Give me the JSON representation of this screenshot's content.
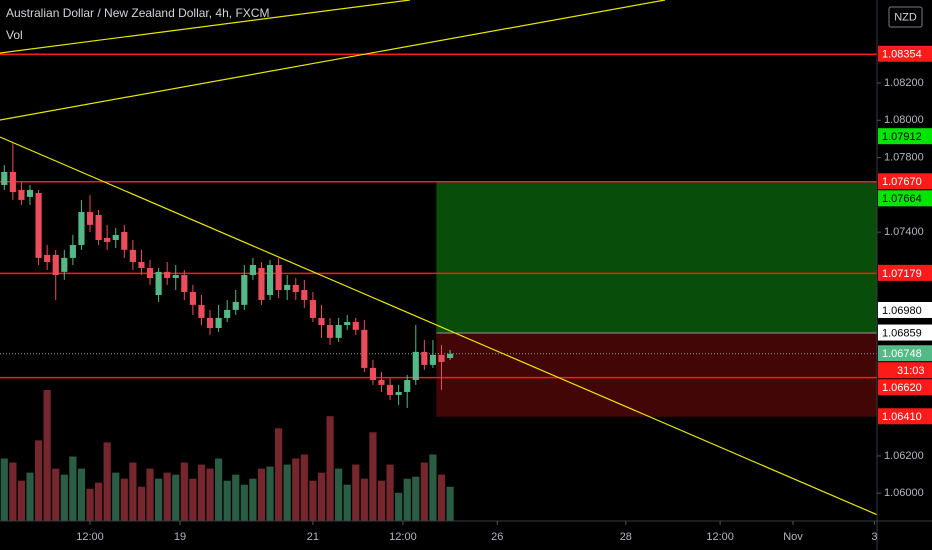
{
  "chart_data": {
    "type": "candlestick",
    "title": "Australian Dollar / New Zealand Dollar, 4h, FXCM",
    "indicator": "Vol",
    "currency": "NZD",
    "up_color": "#53b987",
    "down_color": "#eb4d5c",
    "ylim": [
      1.05851,
      1.08645
    ],
    "yticks": [
      {
        "value": 1.06,
        "label": "1.06000"
      },
      {
        "value": 1.062,
        "label": "1.06200"
      },
      {
        "value": 1.074,
        "label": "1.07400"
      },
      {
        "value": 1.078,
        "label": "1.07800"
      },
      {
        "value": 1.08,
        "label": "1.08000"
      },
      {
        "value": 1.082,
        "label": "1.08200"
      }
    ],
    "xlim": [
      -0.5,
      101.8
    ],
    "xticks": [
      {
        "value": 10,
        "label": "12:00"
      },
      {
        "value": 20.5,
        "label": "19"
      },
      {
        "value": 36,
        "label": "21"
      },
      {
        "value": 46.5,
        "label": "12:00"
      },
      {
        "value": 57.5,
        "label": "26"
      },
      {
        "value": 72.5,
        "label": "28"
      },
      {
        "value": 83.5,
        "label": "12:00"
      },
      {
        "value": 92,
        "label": "Nov"
      },
      {
        "value": 101.5,
        "label": "3"
      }
    ],
    "open": [
      1.07653,
      1.07723,
      1.07626,
      1.07589,
      1.0761,
      1.07278,
      1.07278,
      1.07187,
      1.07262,
      1.07331,
      1.07508,
      1.07492,
      1.07369,
      1.07358,
      1.07401,
      1.07305,
      1.0724,
      1.07208,
      1.07063,
      1.07187,
      1.07154,
      1.0717,
      1.07079,
      1.0701,
      1.0694,
      1.06886,
      1.0694,
      1.06983,
      1.0701,
      1.0717,
      1.07208,
      1.07063,
      1.07224,
      1.0709,
      1.07117,
      1.0709,
      1.07036,
      1.0694,
      1.06902,
      1.06833,
      1.06902,
      1.06918,
      1.06876,
      1.06672,
      1.06607,
      1.06581,
      1.06527,
      1.06543,
      1.06607,
      1.06758,
      1.06688,
      1.06742,
      1.06725
    ],
    "high": [
      1.0776,
      1.07884,
      1.07669,
      1.07653,
      1.07626,
      1.07331,
      1.07305,
      1.07305,
      1.07385,
      1.07573,
      1.07599,
      1.07519,
      1.07439,
      1.07422,
      1.07439,
      1.07358,
      1.07305,
      1.07251,
      1.07208,
      1.0724,
      1.07224,
      1.07197,
      1.07117,
      1.07063,
      1.06983,
      1.0701,
      1.07036,
      1.0709,
      1.07224,
      1.07262,
      1.0724,
      1.07251,
      1.07262,
      1.0717,
      1.07154,
      1.07144,
      1.07079,
      1.0701,
      1.0694,
      1.0694,
      1.06956,
      1.0694,
      1.06929,
      1.06715,
      1.0665,
      1.06618,
      1.06581,
      1.06634,
      1.06902,
      1.06822,
      1.06822,
      1.06795,
      1.06768
    ],
    "low": [
      1.07626,
      1.07573,
      1.07546,
      1.07546,
      1.07224,
      1.07197,
      1.07036,
      1.07144,
      1.07224,
      1.07305,
      1.07401,
      1.07331,
      1.07305,
      1.07315,
      1.07262,
      1.07197,
      1.0717,
      1.07117,
      1.07026,
      1.07117,
      1.0709,
      1.07036,
      1.06956,
      1.06902,
      1.06849,
      1.06865,
      1.06918,
      1.06956,
      1.06983,
      1.07144,
      1.0701,
      1.07036,
      1.07047,
      1.07036,
      1.07036,
      1.06994,
      1.06918,
      1.06833,
      1.06795,
      1.06811,
      1.06876,
      1.06849,
      1.0665,
      1.06581,
      1.06543,
      1.065,
      1.06473,
      1.06457,
      1.06581,
      1.06661,
      1.06672,
      1.06554,
      1.06715
    ],
    "close": [
      1.07723,
      1.07615,
      1.07573,
      1.07626,
      1.07262,
      1.0724,
      1.0717,
      1.07262,
      1.07331,
      1.07508,
      1.07439,
      1.07358,
      1.07347,
      1.07385,
      1.07305,
      1.0724,
      1.07208,
      1.07154,
      1.07187,
      1.07154,
      1.0717,
      1.07079,
      1.0701,
      1.0694,
      1.06886,
      1.0694,
      1.06983,
      1.07026,
      1.0717,
      1.07224,
      1.07036,
      1.07224,
      1.0709,
      1.07117,
      1.07079,
      1.07036,
      1.0694,
      1.06902,
      1.06833,
      1.06902,
      1.06918,
      1.06876,
      1.06672,
      1.06607,
      1.06581,
      1.06527,
      1.06543,
      1.06607,
      1.06758,
      1.06688,
      1.06742,
      1.06704,
      1.06748
    ],
    "volume": [
      62,
      58,
      40,
      48,
      80,
      130,
      52,
      46,
      64,
      52,
      32,
      38,
      78,
      48,
      42,
      58,
      34,
      52,
      42,
      48,
      46,
      58,
      42,
      56,
      52,
      62,
      40,
      46,
      36,
      42,
      52,
      54,
      92,
      56,
      62,
      66,
      40,
      48,
      104,
      52,
      36,
      56,
      42,
      88,
      40,
      56,
      28,
      42,
      44,
      58,
      66,
      46,
      34
    ],
    "position": {
      "start": 50.4,
      "target": 1.0767,
      "entry": 1.06859,
      "stop": 1.0641
    },
    "price_labels": [
      {
        "value": 1.08354,
        "label": "1.08354",
        "color": "#ff1a1a",
        "text_color": "#ffffff",
        "line": "solid"
      },
      {
        "value": 1.07912,
        "label": "1.07912",
        "color": "#00e600",
        "text_color": "#000000"
      },
      {
        "value": 1.0767,
        "label": "1.07670",
        "color": "#ff1a1a",
        "text_color": "#ffffff",
        "line": "solid"
      },
      {
        "value": 1.07664,
        "label": "1.07664",
        "color": "#00e600",
        "text_color": "#000000"
      },
      {
        "value": 1.07179,
        "label": "1.07179",
        "color": "#ff1a1a",
        "text_color": "#ffffff",
        "line": "solid"
      },
      {
        "value": 1.0698,
        "label": "1.06980",
        "color": "#ffffff",
        "text_color": "#000000"
      },
      {
        "value": 1.06859,
        "label": "1.06859",
        "color": "#ffffff",
        "text_color": "#000000"
      },
      {
        "value": 1.06748,
        "label": "1.06748",
        "color": "#53b987",
        "text_color": "#ffffff",
        "line": "dotted",
        "countdown": "31:03"
      },
      {
        "value": 1.0662,
        "label": "1.06620",
        "color": "#ff1a1a",
        "text_color": "#ffffff",
        "line": "solid"
      },
      {
        "value": 1.0641,
        "label": "1.06410",
        "color": "#ff1a1a",
        "text_color": "#ffffff"
      }
    ]
  }
}
